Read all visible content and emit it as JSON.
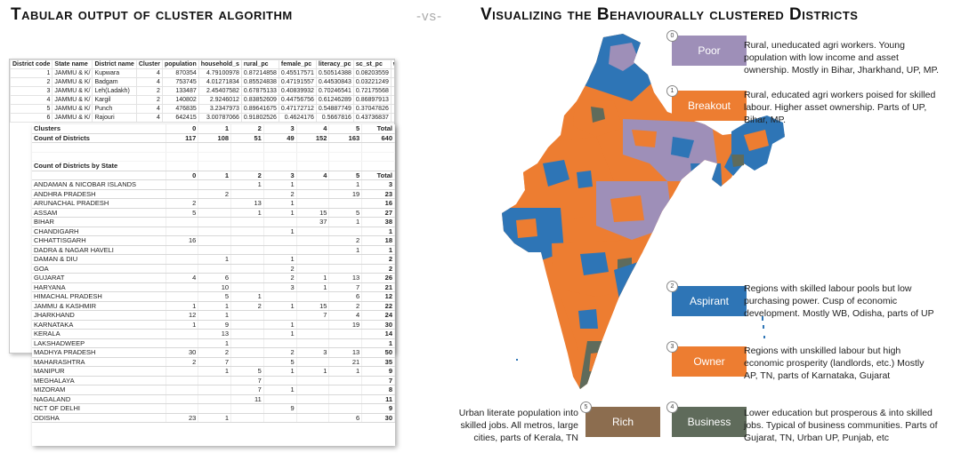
{
  "title_left": "Tabular output of cluster algorithm",
  "vs": "-vs-",
  "title_right": "Visualizing the Behaviourally clustered Districts",
  "back_sheet": {
    "headers": [
      "District code",
      "State name",
      "District name",
      "Cluster",
      "population",
      "household_s",
      "rural_pc",
      "female_pc",
      "literacy_pc",
      "sc_st_pc",
      "work"
    ],
    "rows": [
      [
        "1",
        "JAMMU & K/",
        "Kupwara",
        "4",
        "870354",
        "4.79100978",
        "0.87214858",
        "0.45517571",
        "0.50514388",
        "0.08203559",
        "0.26"
      ],
      [
        "2",
        "JAMMU & K/",
        "Badgam",
        "4",
        "753745",
        "4.01271834",
        "0.85524838",
        "0.47191557",
        "0.44530843",
        "0.03221249",
        "0.26"
      ],
      [
        "3",
        "JAMMU & K/",
        "Leh(Ladakh)",
        "2",
        "133487",
        "2.45407582",
        "0.67875133",
        "0.40839932",
        "0.70246541",
        "0.72175568",
        "0.56"
      ],
      [
        "4",
        "JAMMU & K/",
        "Kargil",
        "2",
        "140802",
        "2.9246012",
        "0.83852609",
        "0.44756756",
        "0.61246289",
        "0.86897913",
        "0.36"
      ],
      [
        "5",
        "JAMMU & K/",
        "Punch",
        "4",
        "476835",
        "3.2347973",
        "0.89641675",
        "0.47172712",
        "0.54887749",
        "0.37047826",
        "0.32"
      ],
      [
        "6",
        "JAMMU & K/",
        "Rajouri",
        "4",
        "642415",
        "3.00787066",
        "0.91802526",
        "0.4624176",
        "0.5667816",
        "0.43736837",
        "0.41"
      ]
    ]
  },
  "front_table": {
    "clusters_label": "Clusters",
    "count_label": "Count of Districts",
    "cluster_cols": [
      "0",
      "1",
      "2",
      "3",
      "4",
      "5",
      "Total"
    ],
    "count_values": [
      "117",
      "108",
      "51",
      "49",
      "152",
      "163",
      "640"
    ],
    "by_state_label": "Count of Districts by State",
    "state_rows": [
      [
        "ANDAMAN & NICOBAR ISLANDS",
        "",
        "",
        "1",
        "1",
        "",
        "1",
        "3"
      ],
      [
        "ANDHRA PRADESH",
        "",
        "2",
        "",
        "2",
        "",
        "19",
        "23"
      ],
      [
        "ARUNACHAL PRADESH",
        "2",
        "",
        "13",
        "1",
        "",
        "",
        "16"
      ],
      [
        "ASSAM",
        "5",
        "",
        "1",
        "1",
        "15",
        "5",
        "27"
      ],
      [
        "BIHAR",
        "",
        "",
        "",
        "",
        "37",
        "1",
        "38"
      ],
      [
        "CHANDIGARH",
        "",
        "",
        "",
        "1",
        "",
        "",
        "1"
      ],
      [
        "CHHATTISGARH",
        "16",
        "",
        "",
        "",
        "",
        "2",
        "18"
      ],
      [
        "DADRA & NAGAR HAVELI",
        "",
        "",
        "",
        "",
        "",
        "1",
        "1"
      ],
      [
        "DAMAN & DIU",
        "",
        "1",
        "",
        "1",
        "",
        "",
        "2"
      ],
      [
        "GOA",
        "",
        "",
        "",
        "2",
        "",
        "",
        "2"
      ],
      [
        "GUJARAT",
        "4",
        "6",
        "",
        "2",
        "1",
        "13",
        "26"
      ],
      [
        "HARYANA",
        "",
        "10",
        "",
        "3",
        "1",
        "7",
        "21"
      ],
      [
        "HIMACHAL PRADESH",
        "",
        "5",
        "1",
        "",
        "",
        "6",
        "12"
      ],
      [
        "JAMMU & KASHMIR",
        "1",
        "1",
        "2",
        "1",
        "15",
        "2",
        "22"
      ],
      [
        "JHARKHAND",
        "12",
        "1",
        "",
        "",
        "7",
        "4",
        "24"
      ],
      [
        "KARNATAKA",
        "1",
        "9",
        "",
        "1",
        "",
        "19",
        "30"
      ],
      [
        "KERALA",
        "",
        "13",
        "",
        "1",
        "",
        "",
        "14"
      ],
      [
        "LAKSHADWEEP",
        "",
        "1",
        "",
        "",
        "",
        "",
        "1"
      ],
      [
        "MADHYA PRADESH",
        "30",
        "2",
        "",
        "2",
        "3",
        "13",
        "50"
      ],
      [
        "MAHARASHTRA",
        "2",
        "7",
        "",
        "5",
        "",
        "21",
        "35"
      ],
      [
        "MANIPUR",
        "",
        "1",
        "5",
        "1",
        "1",
        "1",
        "9"
      ],
      [
        "MEGHALAYA",
        "",
        "",
        "7",
        "",
        "",
        "",
        "7"
      ],
      [
        "MIZORAM",
        "",
        "",
        "7",
        "1",
        "",
        "",
        "8"
      ],
      [
        "NAGALAND",
        "",
        "",
        "11",
        "",
        "",
        "",
        "11"
      ],
      [
        "NCT OF DELHI",
        "",
        "",
        "",
        "9",
        "",
        "",
        "9"
      ],
      [
        "ODISHA",
        "23",
        "1",
        "",
        "",
        "",
        "6",
        "30"
      ]
    ]
  },
  "colors": {
    "poor": "#9e8fb8",
    "breakout": "#ed7d31",
    "aspirant": "#2e75b6",
    "owner": "#ed7d31",
    "rich": "#8c6d4f",
    "business": "#5f6b5b"
  },
  "legend": [
    {
      "num": "0",
      "label": "Poor",
      "color": "#9e8fb8",
      "desc": [
        "Rural, uneducated agri workers. Young",
        "population with low income and asset",
        "ownership. Mostly in Bihar, Jharkhand, UP, MP."
      ]
    },
    {
      "num": "1",
      "label": "Breakout",
      "color": "#ed7d31",
      "desc": [
        "Rural, educated agri workers poised for skilled",
        "labour. Higher asset ownership. Parts of UP,",
        "Bihar, MP."
      ]
    },
    {
      "num": "2",
      "label": "Aspirant",
      "color": "#2e75b6",
      "desc": [
        "Regions with skilled labour pools but low",
        "purchasing power. Cusp of economic",
        "development. Mostly WB, Odisha, parts of UP"
      ]
    },
    {
      "num": "3",
      "label": "Owner",
      "color": "#ed7d31",
      "desc": [
        "Regions with unskilled labour but high",
        "economic prosperity (landlords, etc.) Mostly",
        "AP, TN, parts of Karnataka, Gujarat"
      ]
    },
    {
      "num": "5",
      "label": "Rich",
      "color": "#8c6d4f",
      "desc": [
        "Urban literate population into",
        "skilled jobs. All metros, large",
        "cities, parts of Kerala, TN"
      ]
    },
    {
      "num": "4",
      "label": "Business",
      "color": "#5f6b5b",
      "desc": [
        "Lower education but prosperous & into skilled",
        "jobs. Typical of business communities. Parts of",
        "Gujarat, TN, Urban UP, Punjab, etc"
      ]
    }
  ]
}
